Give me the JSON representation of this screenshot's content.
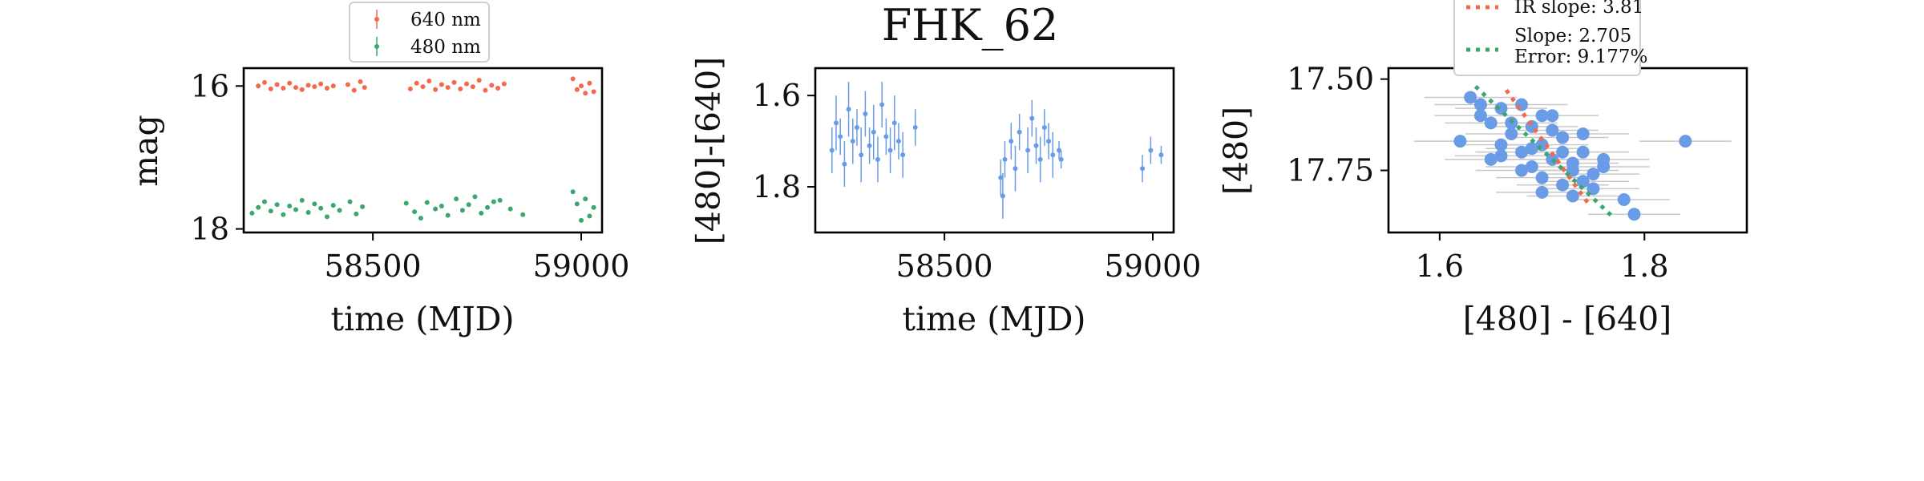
{
  "figure": {
    "title": "FHK_62"
  },
  "colors": {
    "red": "#f4694b",
    "green": "#3aa76d",
    "blue": "#6a9be6",
    "gray": "#c8c8c8"
  },
  "chart_data": [
    {
      "type": "scatter",
      "panel": "left",
      "xlabel": "time (MJD)",
      "ylabel": "mag",
      "xlim": [
        58190,
        59050
      ],
      "ylim": [
        18.05,
        15.75
      ],
      "y_inverted": true,
      "xticks": [
        58500,
        59000
      ],
      "yticks": [
        16,
        18
      ],
      "legend": {
        "placement": "top-center",
        "entries": [
          "640 nm",
          "480 nm"
        ]
      },
      "series": [
        {
          "name": "640 nm",
          "color": "red",
          "x": [
            58225,
            58240,
            58255,
            58270,
            58285,
            58300,
            58315,
            58330,
            58345,
            58360,
            58375,
            58390,
            58405,
            58440,
            58455,
            58470,
            58480,
            58590,
            58605,
            58620,
            58635,
            58650,
            58665,
            58680,
            58695,
            58710,
            58725,
            58740,
            58755,
            58770,
            58785,
            58800,
            58815,
            58980,
            58990,
            59000,
            59010,
            59020,
            59030
          ],
          "y": [
            16.0,
            15.95,
            16.04,
            15.98,
            16.03,
            15.96,
            16.02,
            16.05,
            15.99,
            16.01,
            15.97,
            16.03,
            16.0,
            15.98,
            16.06,
            15.94,
            16.02,
            16.04,
            15.96,
            16.01,
            15.93,
            16.05,
            15.98,
            16.02,
            15.95,
            16.04,
            15.97,
            16.01,
            15.92,
            16.06,
            15.99,
            16.03,
            15.97,
            15.9,
            16.05,
            16.0,
            16.1,
            15.96,
            16.08
          ]
        },
        {
          "name": "480 nm",
          "color": "green",
          "x": [
            58210,
            58225,
            58240,
            58255,
            58270,
            58285,
            58300,
            58315,
            58330,
            58345,
            58360,
            58375,
            58390,
            58405,
            58420,
            58445,
            58460,
            58475,
            58580,
            58600,
            58615,
            58630,
            58650,
            58665,
            58680,
            58700,
            58715,
            58730,
            58745,
            58760,
            58775,
            58790,
            58805,
            58830,
            58860,
            58980,
            58990,
            59000,
            59010,
            59020,
            59030
          ],
          "y": [
            17.78,
            17.7,
            17.62,
            17.75,
            17.66,
            17.8,
            17.68,
            17.73,
            17.6,
            17.77,
            17.65,
            17.71,
            17.83,
            17.67,
            17.74,
            17.62,
            17.79,
            17.69,
            17.64,
            17.76,
            17.85,
            17.63,
            17.72,
            17.68,
            17.81,
            17.58,
            17.74,
            17.66,
            17.55,
            17.78,
            17.7,
            17.62,
            17.6,
            17.72,
            17.8,
            17.48,
            17.65,
            17.88,
            17.58,
            17.82,
            17.7
          ]
        }
      ]
    },
    {
      "type": "scatter",
      "panel": "middle",
      "xlabel": "time (MJD)",
      "ylabel": "[480]-[640]",
      "xlim": [
        58190,
        59050
      ],
      "ylim": [
        1.9,
        1.54
      ],
      "y_inverted": true,
      "xticks": [
        58500,
        59000
      ],
      "yticks": [
        1.6,
        1.8
      ],
      "series": [
        {
          "name": "",
          "color": "blue",
          "x": [
            58230,
            58240,
            58250,
            58260,
            58270,
            58280,
            58290,
            58300,
            58310,
            58320,
            58330,
            58340,
            58350,
            58360,
            58370,
            58380,
            58390,
            58400,
            58430,
            58635,
            58640,
            58645,
            58660,
            58670,
            58680,
            58700,
            58710,
            58720,
            58730,
            58740,
            58750,
            58760,
            58775,
            58780,
            58975,
            58995,
            59020
          ],
          "y": [
            1.72,
            1.66,
            1.69,
            1.75,
            1.63,
            1.7,
            1.67,
            1.73,
            1.64,
            1.71,
            1.68,
            1.74,
            1.62,
            1.69,
            1.72,
            1.66,
            1.7,
            1.73,
            1.67,
            1.78,
            1.82,
            1.74,
            1.7,
            1.76,
            1.68,
            1.72,
            1.65,
            1.71,
            1.74,
            1.67,
            1.7,
            1.73,
            1.72,
            1.74,
            1.76,
            1.72,
            1.73
          ],
          "err": [
            0.05,
            0.06,
            0.04,
            0.05,
            0.06,
            0.05,
            0.04,
            0.06,
            0.05,
            0.04,
            0.06,
            0.05,
            0.05,
            0.04,
            0.05,
            0.06,
            0.04,
            0.05,
            0.04,
            0.04,
            0.05,
            0.04,
            0.04,
            0.05,
            0.04,
            0.05,
            0.04,
            0.04,
            0.05,
            0.04,
            0.04,
            0.05,
            0.02,
            0.02,
            0.03,
            0.03,
            0.02
          ]
        }
      ]
    },
    {
      "type": "scatter",
      "panel": "right",
      "xlabel": "[480] - [640]",
      "ylabel": "[480]",
      "xlim": [
        1.55,
        1.9
      ],
      "ylim": [
        17.92,
        17.47
      ],
      "y_inverted": true,
      "xticks": [
        1.6,
        1.8
      ],
      "yticks": [
        17.5,
        17.75
      ],
      "tick_labels_y": [
        "17.50",
        "17.75"
      ],
      "legend": {
        "placement": "top-center",
        "entries": [
          "IR slope: 3.81",
          "Slope: 2.705\nError: 9.177%"
        ]
      },
      "lines": [
        {
          "name": "IR slope: 3.81",
          "color": "red",
          "style": "dotted",
          "x": [
            1.665,
            1.745
          ],
          "y": [
            17.53,
            17.84
          ]
        },
        {
          "name": "Slope: 2.705",
          "color": "green",
          "style": "dotted",
          "x": [
            1.635,
            1.77
          ],
          "y": [
            17.52,
            17.88
          ]
        }
      ],
      "series": [
        {
          "name": "",
          "color": "blue",
          "xerr": 0.045,
          "x": [
            1.63,
            1.64,
            1.65,
            1.66,
            1.67,
            1.68,
            1.69,
            1.7,
            1.71,
            1.72,
            1.73,
            1.74,
            1.75,
            1.76,
            1.62,
            1.65,
            1.68,
            1.7,
            1.72,
            1.74,
            1.66,
            1.69,
            1.71,
            1.73,
            1.75,
            1.67,
            1.7,
            1.72,
            1.78,
            1.84,
            1.64,
            1.68,
            1.71,
            1.73,
            1.76,
            1.79,
            1.66,
            1.69,
            1.74,
            1.7
          ],
          "y": [
            17.55,
            17.6,
            17.62,
            17.58,
            17.65,
            17.7,
            17.63,
            17.68,
            17.72,
            17.66,
            17.75,
            17.78,
            17.8,
            17.74,
            17.67,
            17.72,
            17.57,
            17.6,
            17.79,
            17.7,
            17.68,
            17.74,
            17.64,
            17.82,
            17.76,
            17.62,
            17.77,
            17.7,
            17.83,
            17.67,
            17.57,
            17.75,
            17.6,
            17.73,
            17.72,
            17.87,
            17.71,
            17.69,
            17.65,
            17.81
          ]
        }
      ]
    }
  ]
}
